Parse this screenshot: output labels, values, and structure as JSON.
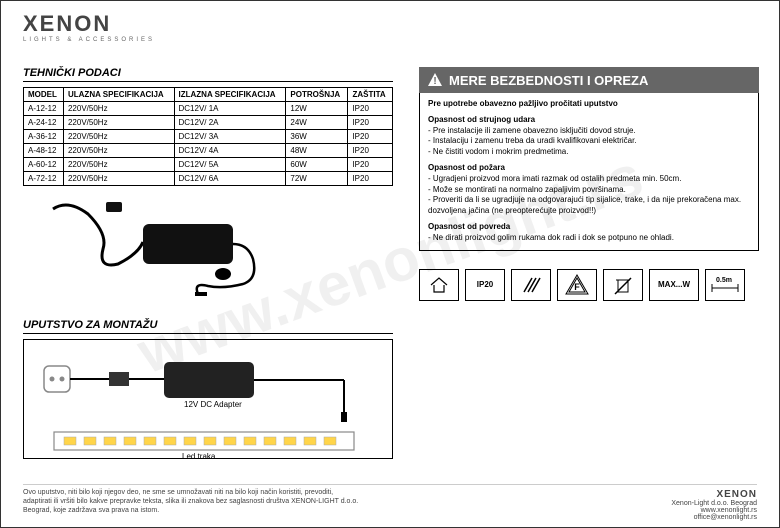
{
  "logo": {
    "text": "XENON",
    "sub": "LIGHTS & ACCESSORIES"
  },
  "watermark": "www.xenonlight.rs",
  "tech": {
    "title": "TEHNIČKI PODACI",
    "columns": [
      "MODEL",
      "ULAZNA SPECIFIKACIJA",
      "IZLAZNA SPECIFIKACIJA",
      "POTROŠNJA",
      "ZAŠTITA"
    ],
    "rows": [
      [
        "A-12-12",
        "220V/50Hz",
        "DC12V/ 1A",
        "12W",
        "IP20"
      ],
      [
        "A-24-12",
        "220V/50Hz",
        "DC12V/ 2A",
        "24W",
        "IP20"
      ],
      [
        "A-36-12",
        "220V/50Hz",
        "DC12V/ 3A",
        "36W",
        "IP20"
      ],
      [
        "A-48-12",
        "220V/50Hz",
        "DC12V/ 4A",
        "48W",
        "IP20"
      ],
      [
        "A-60-12",
        "220V/50Hz",
        "DC12V/ 5A",
        "60W",
        "IP20"
      ],
      [
        "A-72-12",
        "220V/50Hz",
        "DC12V/ 6A",
        "72W",
        "IP20"
      ]
    ]
  },
  "mount": {
    "title": "UPUTSTVO ZA MONTAŽU",
    "adapter_label": "12V DC  Adapter",
    "strip_label": "Led traka"
  },
  "safety": {
    "banner": "MERE BEZBEDNOSTI I OPREZA",
    "heading": "Pre upotrebe obavezno pažljivo pročitati uputstvo",
    "s1_title": "Opasnost od strujnog udara",
    "s1_l1": "- Pre instalacije ili zamene obavezno isključiti dovod struje.",
    "s1_l2": "- Instalaciju i zamenu treba da uradi kvalifikovani električar.",
    "s1_l3": "- Ne čistiti vodom i mokrim predmetima.",
    "s2_title": "Opasnost od požara",
    "s2_l1": "- Ugradjeni proizvod mora imati razmak od ostalih predmeta min. 50cm.",
    "s2_l2": "- Može se montirati na normalno zapaljivim površinama.",
    "s2_l3": "- Proveriti da li se ugradjuje na odgovarajući tip sijalice, trake, i da nije prekoračena max. dozvoljena jačina (ne preopterećujte proizvod!!)",
    "s3_title": "Opasnost od povreda",
    "s3_l1": "- Ne dirati proizvod golim rukama dok radi i dok se potpuno ne ohladi."
  },
  "icons": {
    "i1": "",
    "i2": "IP20",
    "i3": "",
    "i4": "F",
    "i5": "",
    "i6": "MAX...W",
    "i7": "0.5m"
  },
  "footer": {
    "left": "Ovo uputstvo, niti bilo koji njegov deo, ne sme se umnožavati niti na bilo koji način koristiti, prevoditi, adaptirati ili vršiti bilo kakve prepravke teksta, slika ili znakova bez saglasnosti društva XENON-LIGHT d.o.o. Beograd, koje zadržava sva prava na istom.",
    "brand": "XENON",
    "r1": "Xenon-Light d.o.o. Beograd",
    "r2": "www.xenonlight.rs",
    "r3": "office@xenonlight.rs"
  }
}
